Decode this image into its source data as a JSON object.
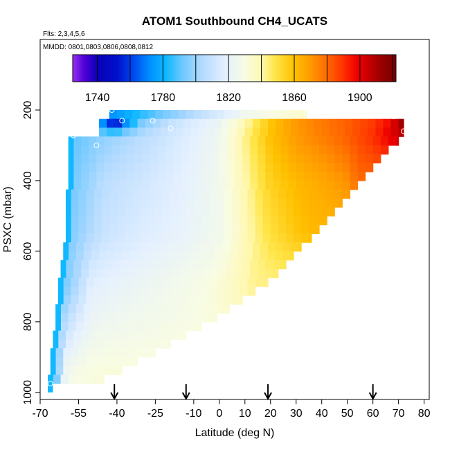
{
  "chart_data": {
    "type": "heatmap",
    "title": "ATOM1 Southbound CH4_UCATS",
    "flights_note": "Flts: 2,3,4,5,6",
    "dates_note": "MMDD: 0801,0803,0806,0808,0812",
    "xlabel": "Latitude (deg N)",
    "ylabel": "PSXC (mbar)",
    "xlim": [
      -70,
      82
    ],
    "ylim": [
      1020,
      0
    ],
    "x_ticks": [
      -70,
      -55,
      -40,
      -25,
      -10,
      0,
      10,
      20,
      30,
      40,
      50,
      60,
      70,
      80
    ],
    "y_ticks": [
      200,
      400,
      600,
      800,
      1000
    ],
    "colorbar": {
      "range": [
        1725,
        1922
      ],
      "tick_values": [
        1740,
        1780,
        1820,
        1860,
        1900
      ],
      "tick_labels": [
        "1740",
        "1780",
        "1820",
        "1860",
        "1900"
      ],
      "division_values": [
        1740,
        1760,
        1780,
        1800,
        1820,
        1840,
        1860,
        1880,
        1900,
        1920
      ],
      "stops": [
        {
          "v": 1725,
          "c": "#9a30f0"
        },
        {
          "v": 1732,
          "c": "#5000d8"
        },
        {
          "v": 1740,
          "c": "#0a00b8"
        },
        {
          "v": 1752,
          "c": "#0010cc"
        },
        {
          "v": 1762,
          "c": "#0048f0"
        },
        {
          "v": 1772,
          "c": "#0090ff"
        },
        {
          "v": 1782,
          "c": "#10b8ff"
        },
        {
          "v": 1792,
          "c": "#70c8ff"
        },
        {
          "v": 1805,
          "c": "#b8dcff"
        },
        {
          "v": 1818,
          "c": "#e4f0ff"
        },
        {
          "v": 1830,
          "c": "#f8fce4"
        },
        {
          "v": 1840,
          "c": "#fff8b0"
        },
        {
          "v": 1848,
          "c": "#ffe64a"
        },
        {
          "v": 1860,
          "c": "#ffc000"
        },
        {
          "v": 1870,
          "c": "#ff9a00"
        },
        {
          "v": 1880,
          "c": "#ff6a00"
        },
        {
          "v": 1890,
          "c": "#ff3000"
        },
        {
          "v": 1898,
          "c": "#f00000"
        },
        {
          "v": 1908,
          "c": "#b80000"
        },
        {
          "v": 1915,
          "c": "#900000"
        },
        {
          "v": 1922,
          "c": "#7a0000"
        }
      ]
    },
    "field": {
      "lat_step": 3,
      "pressure_levels": [
        200,
        225,
        250,
        275,
        300,
        325,
        350,
        375,
        400,
        425,
        450,
        475,
        500,
        525,
        550,
        575,
        600,
        625,
        650,
        675,
        700,
        725,
        750,
        775,
        800,
        825,
        850,
        875,
        900,
        925,
        950
      ],
      "pressure_step": 25,
      "rows": [
        {
          "p": 200,
          "lat_min": -43,
          "lat_max": 34
        },
        {
          "p": 225,
          "lat_min": -47,
          "lat_max": 72
        },
        {
          "p": 250,
          "lat_min": -47,
          "lat_max": 72
        },
        {
          "p": 275,
          "lat_min": -57,
          "lat_max": 70
        },
        {
          "p": 300,
          "lat_min": -57,
          "lat_max": 66
        },
        {
          "p": 325,
          "lat_min": -57,
          "lat_max": 63
        },
        {
          "p": 350,
          "lat_min": -57,
          "lat_max": 60
        },
        {
          "p": 375,
          "lat_min": -57,
          "lat_max": 57
        },
        {
          "p": 400,
          "lat_min": -57,
          "lat_max": 54
        },
        {
          "p": 425,
          "lat_min": -58,
          "lat_max": 51
        },
        {
          "p": 450,
          "lat_min": -58,
          "lat_max": 48
        },
        {
          "p": 475,
          "lat_min": -58,
          "lat_max": 45
        },
        {
          "p": 500,
          "lat_min": -58,
          "lat_max": 42
        },
        {
          "p": 525,
          "lat_min": -58,
          "lat_max": 39
        },
        {
          "p": 550,
          "lat_min": -58,
          "lat_max": 36
        },
        {
          "p": 575,
          "lat_min": -59,
          "lat_max": 32
        },
        {
          "p": 600,
          "lat_min": -59,
          "lat_max": 29
        },
        {
          "p": 625,
          "lat_min": -60,
          "lat_max": 26
        },
        {
          "p": 650,
          "lat_min": -60,
          "lat_max": 23
        },
        {
          "p": 675,
          "lat_min": -61,
          "lat_max": 19
        },
        {
          "p": 700,
          "lat_min": -61,
          "lat_max": 14
        },
        {
          "p": 725,
          "lat_min": -61,
          "lat_max": 9
        },
        {
          "p": 750,
          "lat_min": -62,
          "lat_max": 4
        },
        {
          "p": 775,
          "lat_min": -62,
          "lat_max": -1
        },
        {
          "p": 800,
          "lat_min": -62,
          "lat_max": -7
        },
        {
          "p": 825,
          "lat_min": -63,
          "lat_max": -13
        },
        {
          "p": 850,
          "lat_min": -63,
          "lat_max": -19
        },
        {
          "p": 875,
          "lat_min": -64,
          "lat_max": -25
        },
        {
          "p": 900,
          "lat_min": -64,
          "lat_max": -32
        },
        {
          "p": 925,
          "lat_min": -64,
          "lat_max": -38
        },
        {
          "p": 950,
          "lat_min": -65,
          "lat_max": -45
        }
      ],
      "anchors": [
        {
          "p": 200,
          "lats": [
            -45,
            -30,
            -15,
            0,
            10,
            20,
            34
          ],
          "vals": [
            1770,
            1785,
            1800,
            1815,
            1825,
            1830,
            1835
          ]
        },
        {
          "p": 225,
          "lats": [
            -47,
            -43,
            -40,
            -37,
            -30,
            -20,
            -10,
            0,
            10,
            20,
            30,
            40,
            50,
            60,
            67,
            70,
            72
          ],
          "vals": [
            1775,
            1745,
            1738,
            1760,
            1792,
            1806,
            1815,
            1822,
            1838,
            1858,
            1870,
            1877,
            1882,
            1888,
            1896,
            1910,
            1920
          ]
        },
        {
          "p": 275,
          "lats": [
            -57,
            -45,
            -30,
            -15,
            0,
            10,
            20,
            30,
            40,
            50,
            60,
            70
          ],
          "vals": [
            1790,
            1798,
            1806,
            1815,
            1825,
            1843,
            1860,
            1870,
            1876,
            1882,
            1890,
            1905
          ]
        },
        {
          "p": 400,
          "lats": [
            -58,
            -45,
            -30,
            -15,
            0,
            10,
            20,
            30,
            40,
            50,
            54
          ],
          "vals": [
            1792,
            1806,
            1812,
            1818,
            1826,
            1840,
            1855,
            1862,
            1866,
            1872,
            1880
          ]
        },
        {
          "p": 550,
          "lats": [
            -58,
            -45,
            -30,
            -15,
            0,
            10,
            20,
            30,
            36
          ],
          "vals": [
            1795,
            1810,
            1816,
            1820,
            1826,
            1838,
            1850,
            1858,
            1862
          ]
        },
        {
          "p": 700,
          "lats": [
            -61,
            -50,
            -35,
            -20,
            -5,
            5,
            14
          ],
          "vals": [
            1792,
            1818,
            1822,
            1826,
            1830,
            1836,
            1843
          ]
        },
        {
          "p": 950,
          "lats": [
            -65,
            -60,
            -55,
            -45
          ],
          "vals": [
            1782,
            1826,
            1830,
            1832
          ]
        }
      ],
      "edge_strip": {
        "lat_width": 2,
        "value": 1782
      }
    },
    "observations": [
      {
        "lat": -42,
        "p": 200
      },
      {
        "lat": -38,
        "p": 230
      },
      {
        "lat": -26,
        "p": 230
      },
      {
        "lat": -19,
        "p": 252
      },
      {
        "lat": -57,
        "p": 272
      },
      {
        "lat": -48,
        "p": 300
      },
      {
        "lat": 34,
        "p": 208
      },
      {
        "lat": 68,
        "p": 218
      },
      {
        "lat": 72,
        "p": 260
      },
      {
        "lat": -66,
        "p": 975
      }
    ],
    "arrows": [
      -41,
      -13,
      19,
      60
    ]
  }
}
